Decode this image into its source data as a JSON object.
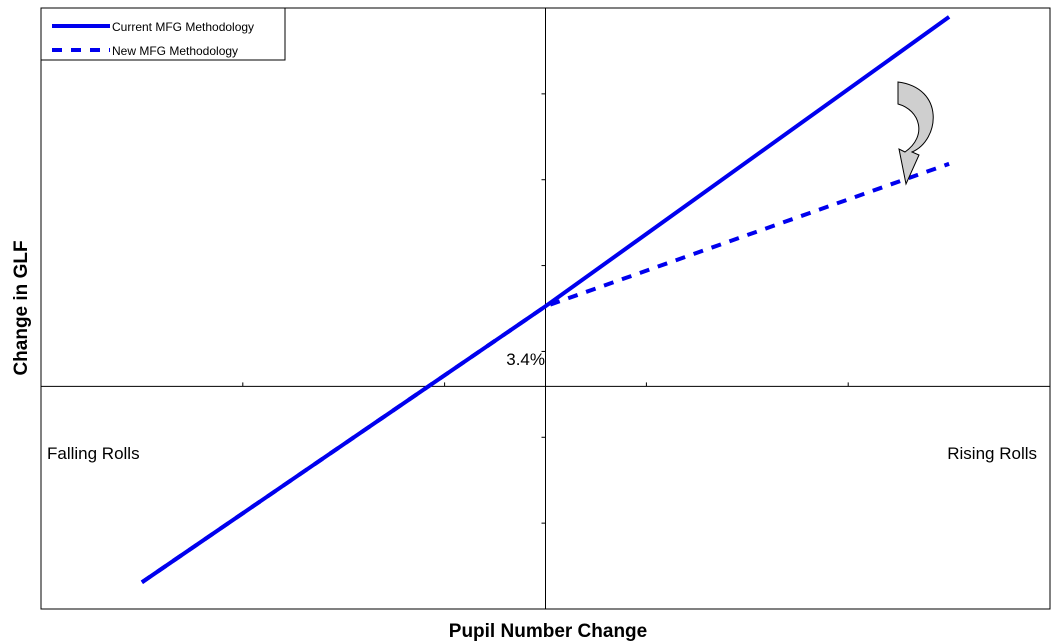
{
  "chart_data": {
    "type": "line",
    "xlabel": "Pupil Number Change",
    "ylabel": "Change in GLF",
    "xlim": [
      -1,
      1
    ],
    "ylim": [
      -1,
      1.7
    ],
    "series": [
      {
        "name": "Current MFG Methodology",
        "style": "solid",
        "color": "#0000ee",
        "points": [
          [
            -0.8,
            -0.88
          ],
          [
            0,
            0.36
          ],
          [
            0.8,
            1.66
          ]
        ]
      },
      {
        "name": "New MFG Methodology",
        "style": "dashed",
        "color": "#0000ee",
        "points": [
          [
            -0.8,
            -0.88
          ],
          [
            0,
            0.36
          ],
          [
            0.8,
            1.0
          ]
        ]
      }
    ],
    "annotations": {
      "kink_label": "3.4%",
      "left_label": "Falling Rolls",
      "right_label": "Rising Rolls"
    },
    "legend_position": "top-left",
    "grid": false
  }
}
